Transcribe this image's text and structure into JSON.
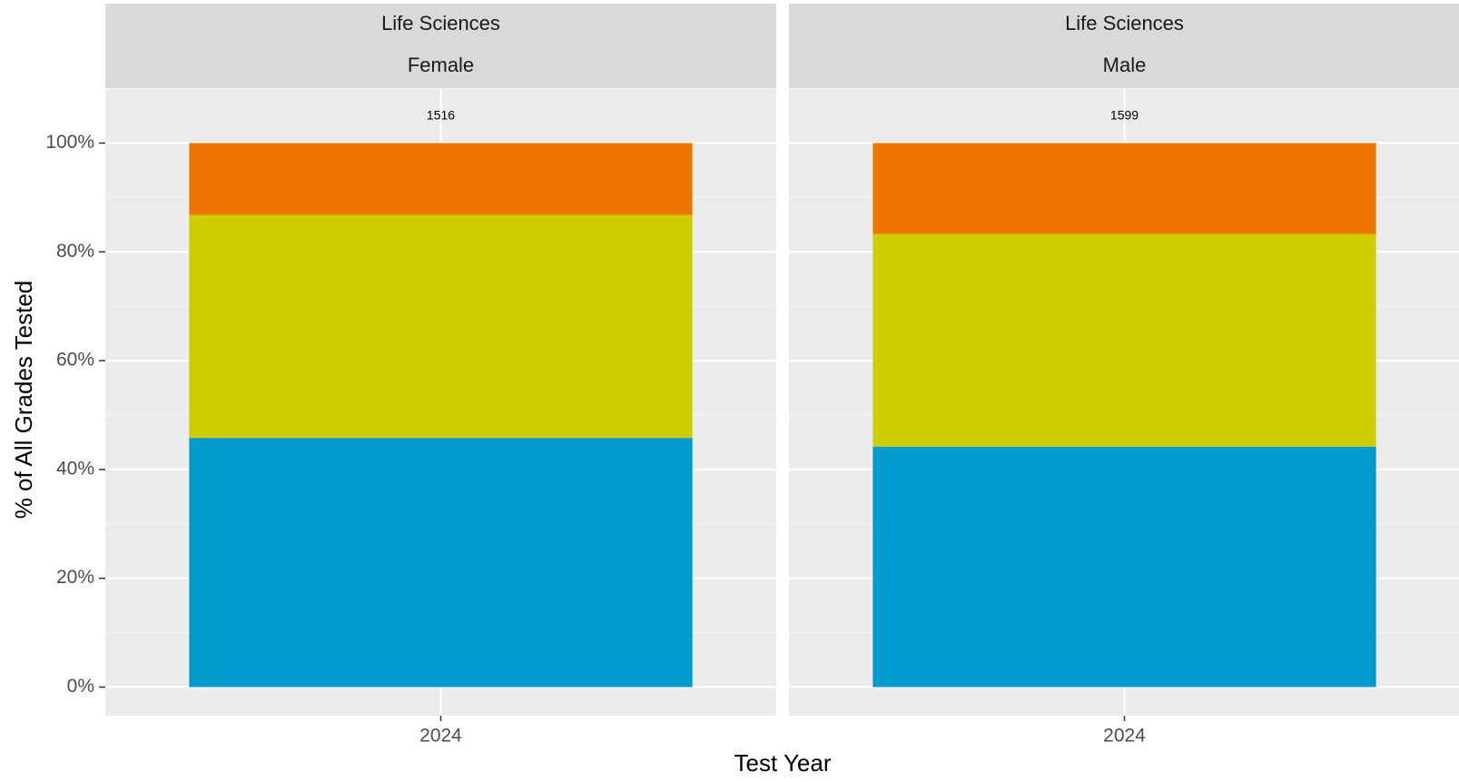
{
  "chart_data": {
    "type": "bar",
    "stacked": true,
    "xlabel": "Test Year",
    "ylabel": "% of All Grades Tested",
    "ylim": [
      0,
      100
    ],
    "y_ticks": [
      "0%",
      "20%",
      "40%",
      "60%",
      "80%",
      "100%"
    ],
    "categories": [
      "2024"
    ],
    "panels": [
      {
        "strip_top": "Life Sciences",
        "strip_bottom": "Female",
        "count_label": "1516",
        "segments": [
          {
            "value": 45.8,
            "color": "#009ACD"
          },
          {
            "value": 41.0,
            "color": "#CDCD00"
          },
          {
            "value": 13.2,
            "color": "#EE7600"
          }
        ]
      },
      {
        "strip_top": "Life Sciences",
        "strip_bottom": "Male",
        "count_label": "1599",
        "segments": [
          {
            "value": 44.2,
            "color": "#009ACD"
          },
          {
            "value": 39.1,
            "color": "#CDCD00"
          },
          {
            "value": 16.7,
            "color": "#EE7600"
          }
        ]
      }
    ],
    "grid": true,
    "legend": "none"
  }
}
